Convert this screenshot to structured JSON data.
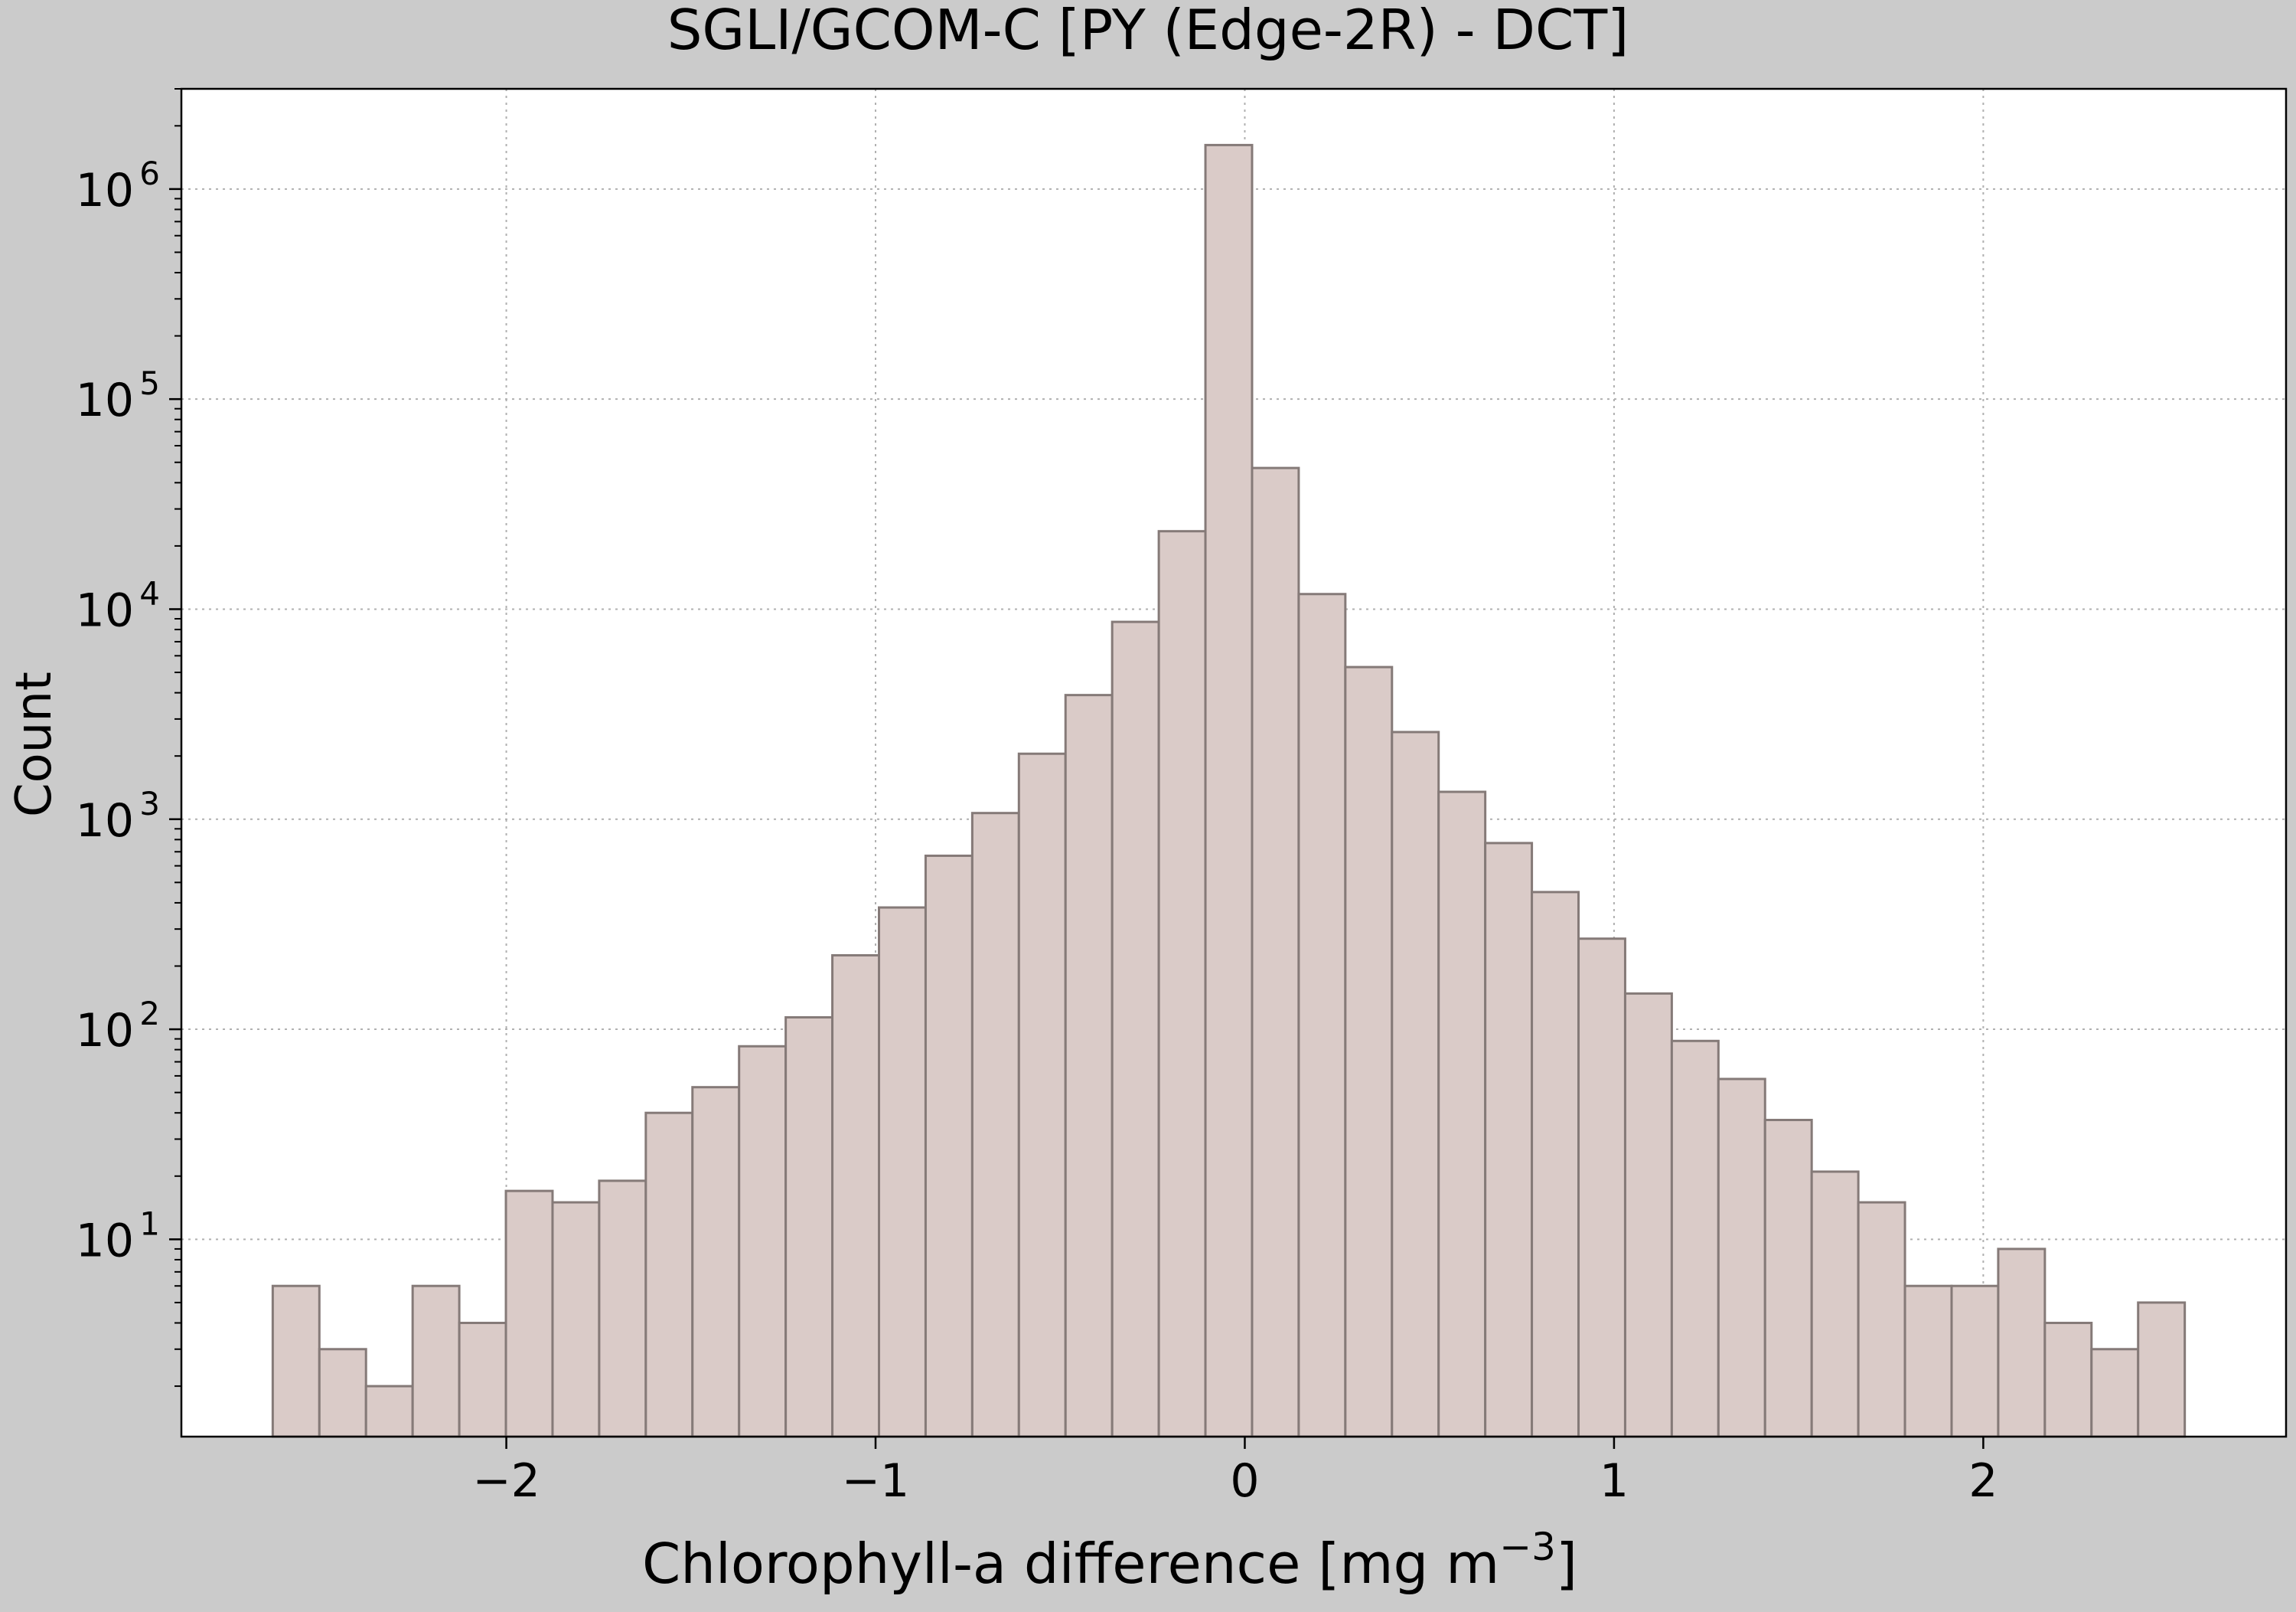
{
  "chart_data": {
    "type": "bar",
    "title": "SGLI/GCOM-C [PY (Edge-2R) - DCT]",
    "xlabel": "Chlorophyll-a difference [mg m",
    "xlabel_sup": "−3",
    "xlabel_close": "]",
    "ylabel": "Count",
    "y_scale": "log",
    "xlim": [
      -2.88,
      2.82
    ],
    "ylim": [
      1.15,
      3000000
    ],
    "grid": true,
    "bin_width": 0.1263,
    "bin_start": -2.6326,
    "values": [
      6,
      3,
      2,
      6,
      4,
      17,
      15,
      19,
      40,
      53,
      83,
      114,
      225,
      380,
      670,
      1070,
      2050,
      3900,
      8700,
      23500,
      1620000,
      47000,
      11800,
      5300,
      2600,
      1350,
      770,
      450,
      270,
      148,
      88,
      58,
      37,
      21,
      15,
      6,
      6,
      9,
      4,
      3,
      5
    ],
    "x_ticks": [
      {
        "value": -2,
        "label": "−2"
      },
      {
        "value": -1,
        "label": "−1"
      },
      {
        "value": 0,
        "label": "0"
      },
      {
        "value": 1,
        "label": "1"
      },
      {
        "value": 2,
        "label": "2"
      }
    ],
    "y_ticks": [
      {
        "value": 10,
        "base": "10",
        "exp": "1"
      },
      {
        "value": 100,
        "base": "10",
        "exp": "2"
      },
      {
        "value": 1000,
        "base": "10",
        "exp": "3"
      },
      {
        "value": 10000,
        "base": "10",
        "exp": "4"
      },
      {
        "value": 100000,
        "base": "10",
        "exp": "5"
      },
      {
        "value": 1000000,
        "base": "10",
        "exp": "6"
      }
    ],
    "colors": {
      "bar_fill": "#dacbc8",
      "bar_edge": "#857a78",
      "background": "#cbcbcb",
      "plot_bg": "#ffffff",
      "grid": "#b0b0b0"
    }
  }
}
